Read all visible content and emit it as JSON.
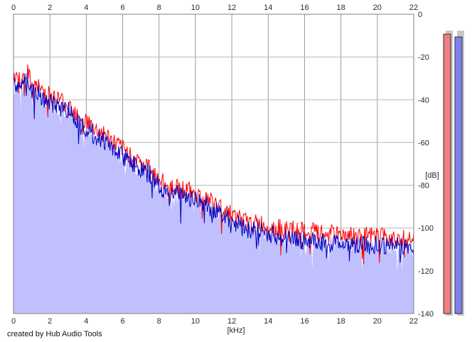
{
  "chart_data": {
    "type": "area",
    "title": "",
    "xlabel": "[kHz]",
    "ylabel": "[dB]",
    "xlim": [
      0,
      22
    ],
    "ylim": [
      -140,
      0
    ],
    "x_ticks": [
      "0",
      "2",
      "4",
      "6",
      "8",
      "10",
      "12",
      "14",
      "16",
      "18",
      "20",
      "22"
    ],
    "y_ticks": [
      "0",
      "-20",
      "-40",
      "-60",
      "-80",
      "-100",
      "-120",
      "-140"
    ],
    "grid": true,
    "series": [
      {
        "color": "#ff0000",
        "fill": "none",
        "x": [
          0,
          0.25,
          0.5,
          0.75,
          1,
          1.5,
          2,
          2.5,
          3,
          3.5,
          4,
          4.5,
          5,
          5.5,
          6,
          6.5,
          7,
          7.5,
          8,
          8.5,
          9,
          9.5,
          10,
          10.5,
          11,
          11.5,
          12,
          12.5,
          13,
          13.5,
          14,
          14.5,
          15,
          15.5,
          16,
          16.5,
          17,
          17.5,
          18,
          18.5,
          19,
          19.5,
          20,
          20.5,
          21,
          21.5,
          22
        ],
        "y": [
          -32,
          -29,
          -31,
          -27,
          -33,
          -35,
          -38,
          -40,
          -42,
          -46,
          -50,
          -54,
          -56,
          -60,
          -63,
          -66,
          -70,
          -72,
          -78,
          -80,
          -81,
          -82,
          -84,
          -86,
          -88,
          -91,
          -93,
          -96,
          -98,
          -98,
          -99,
          -100,
          -101,
          -101,
          -102,
          -102,
          -103,
          -103,
          -103,
          -103,
          -104,
          -104,
          -104,
          -104,
          -104,
          -105,
          -105
        ]
      },
      {
        "color": "#0000c0",
        "fill": "#c0c0ff",
        "x": [
          0,
          0.25,
          0.5,
          0.75,
          1,
          1.5,
          2,
          2.5,
          3,
          3.5,
          4,
          4.5,
          5,
          5.5,
          6,
          6.5,
          7,
          7.5,
          8,
          8.5,
          9,
          9.5,
          10,
          10.5,
          11,
          11.5,
          12,
          12.5,
          13,
          13.5,
          14,
          14.5,
          15,
          15.5,
          16,
          16.5,
          17,
          17.5,
          18,
          18.5,
          19,
          19.5,
          20,
          20.5,
          21,
          21.5,
          22
        ],
        "y": [
          -35,
          -32,
          -34,
          -30,
          -36,
          -38,
          -42,
          -43,
          -45,
          -49,
          -53,
          -57,
          -59,
          -63,
          -66,
          -69,
          -73,
          -75,
          -81,
          -83,
          -84,
          -85,
          -87,
          -89,
          -91,
          -94,
          -96,
          -99,
          -101,
          -101,
          -103,
          -104,
          -105,
          -105,
          -106,
          -106,
          -107,
          -107,
          -107,
          -107,
          -108,
          -108,
          -108,
          -108,
          -108,
          -109,
          -109
        ]
      }
    ]
  },
  "meters": [
    {
      "color": "#f08080",
      "level": 0.02
    },
    {
      "color": "#8080f0",
      "level": 0.03
    }
  ],
  "footer": {
    "credit": "created by Hub Audio Tools"
  }
}
